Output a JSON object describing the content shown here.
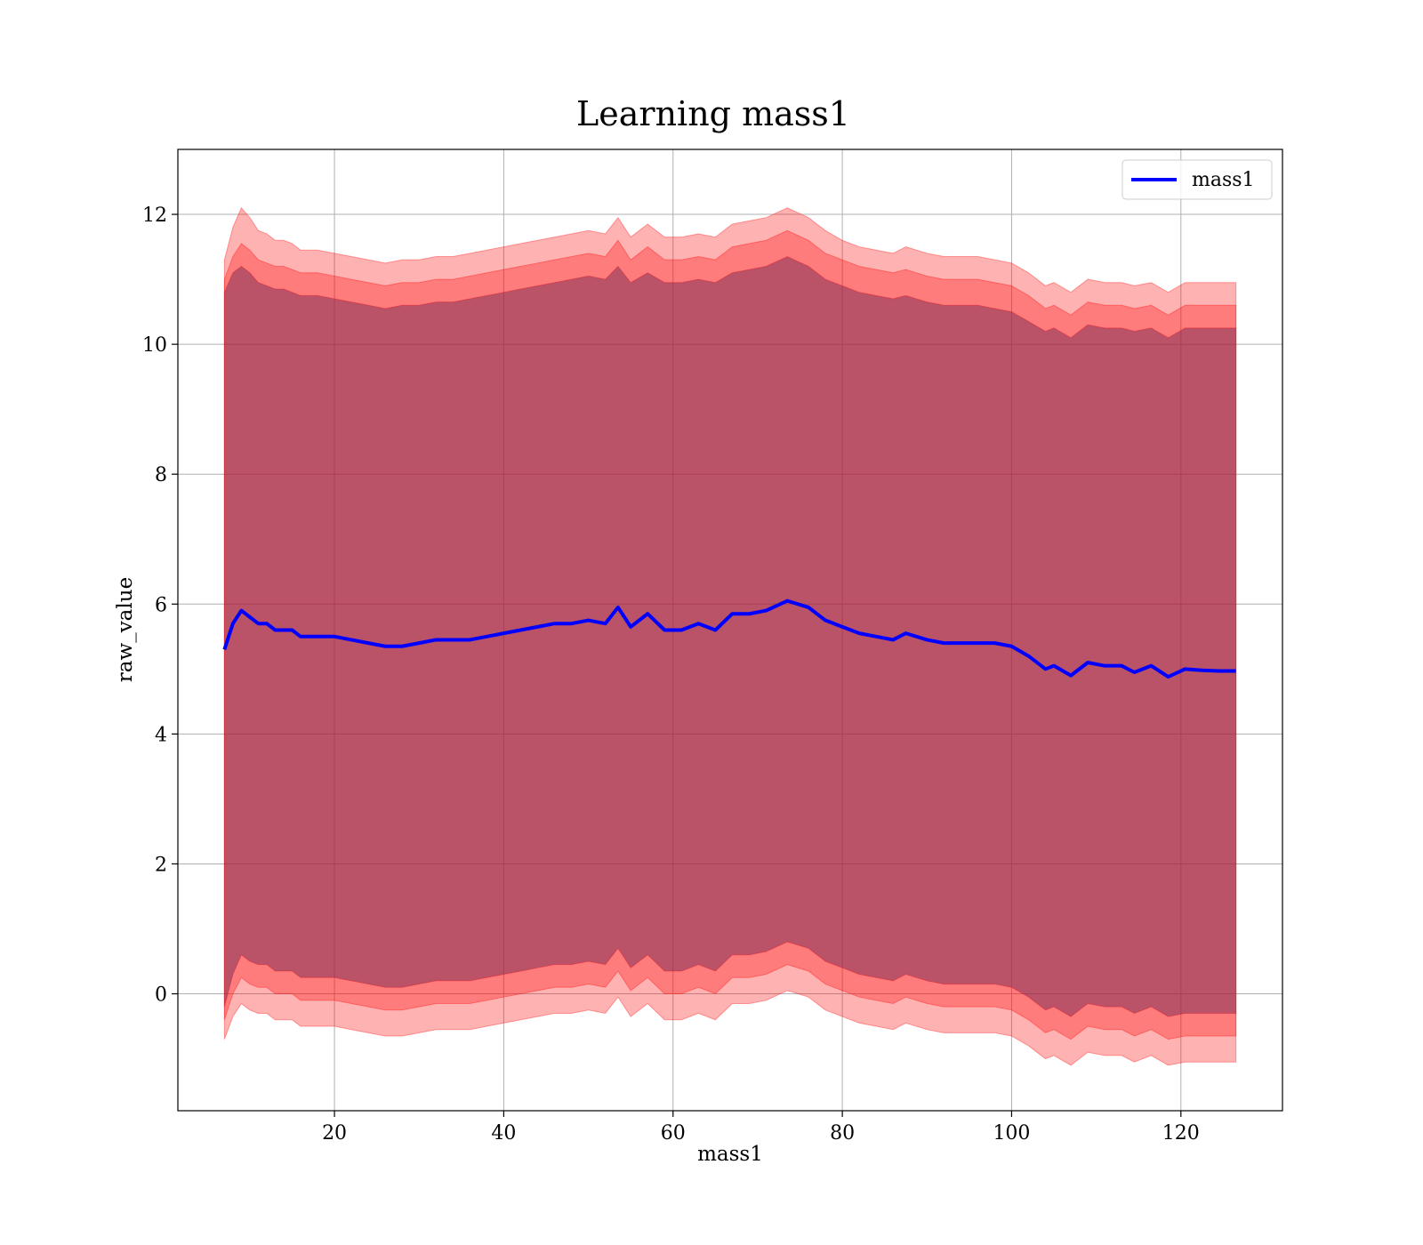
{
  "chart_data": {
    "type": "area",
    "title": "Learning mass1",
    "xlabel": "mass1",
    "ylabel": "raw_value",
    "xlim": [
      1.5,
      132
    ],
    "ylim": [
      -1.8,
      13.0
    ],
    "xticks": [
      20,
      40,
      60,
      80,
      100,
      120
    ],
    "yticks": [
      0,
      2,
      4,
      6,
      8,
      10,
      12
    ],
    "grid": true,
    "legend_position": "top-right",
    "colors": {
      "mean_line": "#0000ff",
      "band": "#ff0000",
      "background": "#ffffff"
    },
    "x": [
      7,
      8,
      9,
      10,
      11,
      12,
      13,
      14,
      15,
      16,
      18,
      20,
      22,
      24,
      26,
      28,
      30,
      32,
      34,
      36,
      38,
      40,
      42,
      44,
      46,
      48,
      50,
      52,
      53.5,
      55,
      57,
      59,
      61,
      63,
      65,
      67,
      69,
      71,
      73.5,
      76,
      78,
      80,
      82,
      84,
      86,
      87.5,
      90,
      92,
      94,
      96,
      98,
      100,
      102,
      104,
      105,
      107,
      109,
      111,
      113,
      114.5,
      116.5,
      118.5,
      120.5,
      122.5,
      124.5,
      126.5
    ],
    "series": [
      {
        "name": "mass1",
        "values": [
          5.3,
          5.7,
          5.9,
          5.8,
          5.7,
          5.7,
          5.6,
          5.6,
          5.6,
          5.5,
          5.5,
          5.5,
          5.45,
          5.4,
          5.35,
          5.35,
          5.4,
          5.45,
          5.45,
          5.45,
          5.5,
          5.55,
          5.6,
          5.65,
          5.7,
          5.7,
          5.75,
          5.7,
          5.95,
          5.65,
          5.85,
          5.6,
          5.6,
          5.7,
          5.6,
          5.85,
          5.85,
          5.9,
          6.05,
          5.95,
          5.75,
          5.65,
          5.55,
          5.5,
          5.45,
          5.55,
          5.45,
          5.4,
          5.4,
          5.4,
          5.4,
          5.35,
          5.2,
          5.0,
          5.05,
          4.9,
          5.1,
          5.05,
          5.05,
          4.95,
          5.05,
          4.88,
          5.0,
          4.98,
          4.97,
          4.97
        ]
      }
    ],
    "bands": [
      {
        "upper": [
          10.8,
          11.1,
          11.2,
          11.1,
          10.95,
          10.9,
          10.85,
          10.85,
          10.8,
          10.75,
          10.75,
          10.7,
          10.65,
          10.6,
          10.55,
          10.6,
          10.6,
          10.65,
          10.65,
          10.7,
          10.75,
          10.8,
          10.85,
          10.9,
          10.95,
          11.0,
          11.05,
          11.0,
          11.2,
          10.95,
          11.1,
          10.95,
          10.95,
          11.0,
          10.95,
          11.1,
          11.15,
          11.2,
          11.35,
          11.2,
          11.0,
          10.9,
          10.8,
          10.75,
          10.7,
          10.75,
          10.65,
          10.6,
          10.6,
          10.6,
          10.55,
          10.5,
          10.35,
          10.2,
          10.25,
          10.1,
          10.3,
          10.25,
          10.25,
          10.2,
          10.25,
          10.1,
          10.25,
          10.25,
          10.25,
          10.25
        ],
        "lower": [
          -0.2,
          0.3,
          0.6,
          0.5,
          0.45,
          0.45,
          0.35,
          0.35,
          0.35,
          0.25,
          0.25,
          0.25,
          0.2,
          0.15,
          0.1,
          0.1,
          0.15,
          0.2,
          0.2,
          0.2,
          0.25,
          0.3,
          0.35,
          0.4,
          0.45,
          0.45,
          0.5,
          0.45,
          0.7,
          0.4,
          0.6,
          0.35,
          0.35,
          0.45,
          0.35,
          0.6,
          0.6,
          0.65,
          0.8,
          0.7,
          0.5,
          0.4,
          0.3,
          0.25,
          0.2,
          0.3,
          0.2,
          0.15,
          0.15,
          0.15,
          0.15,
          0.1,
          -0.05,
          -0.25,
          -0.2,
          -0.35,
          -0.15,
          -0.2,
          -0.2,
          -0.3,
          -0.2,
          -0.35,
          -0.3,
          -0.3,
          -0.3,
          -0.3
        ]
      },
      {
        "upper": [
          11.0,
          11.35,
          11.55,
          11.45,
          11.3,
          11.25,
          11.2,
          11.2,
          11.15,
          11.1,
          11.1,
          11.05,
          11.0,
          10.95,
          10.9,
          10.95,
          10.95,
          11.0,
          11.0,
          11.05,
          11.1,
          11.15,
          11.2,
          11.25,
          11.3,
          11.35,
          11.4,
          11.35,
          11.6,
          11.3,
          11.5,
          11.3,
          11.3,
          11.35,
          11.3,
          11.5,
          11.55,
          11.6,
          11.75,
          11.6,
          11.4,
          11.3,
          11.2,
          11.15,
          11.1,
          11.15,
          11.05,
          11.0,
          11.0,
          11.0,
          10.95,
          10.9,
          10.75,
          10.55,
          10.6,
          10.45,
          10.65,
          10.6,
          10.6,
          10.55,
          10.6,
          10.45,
          10.6,
          10.6,
          10.6,
          10.6
        ],
        "lower": [
          -0.4,
          0.0,
          0.25,
          0.15,
          0.1,
          0.1,
          0.0,
          0.0,
          0.0,
          -0.1,
          -0.1,
          -0.1,
          -0.15,
          -0.2,
          -0.25,
          -0.25,
          -0.2,
          -0.15,
          -0.15,
          -0.15,
          -0.1,
          -0.05,
          0.0,
          0.05,
          0.1,
          0.1,
          0.15,
          0.1,
          0.35,
          0.05,
          0.25,
          0.0,
          0.0,
          0.1,
          0.0,
          0.25,
          0.25,
          0.3,
          0.45,
          0.35,
          0.15,
          0.05,
          -0.05,
          -0.1,
          -0.15,
          -0.05,
          -0.15,
          -0.2,
          -0.2,
          -0.2,
          -0.2,
          -0.25,
          -0.4,
          -0.6,
          -0.55,
          -0.7,
          -0.5,
          -0.55,
          -0.55,
          -0.65,
          -0.55,
          -0.7,
          -0.65,
          -0.65,
          -0.65,
          -0.65
        ]
      },
      {
        "upper": [
          11.3,
          11.8,
          12.1,
          11.95,
          11.75,
          11.7,
          11.6,
          11.6,
          11.55,
          11.45,
          11.45,
          11.4,
          11.35,
          11.3,
          11.25,
          11.3,
          11.3,
          11.35,
          11.35,
          11.4,
          11.45,
          11.5,
          11.55,
          11.6,
          11.65,
          11.7,
          11.75,
          11.7,
          11.95,
          11.65,
          11.85,
          11.65,
          11.65,
          11.7,
          11.65,
          11.85,
          11.9,
          11.95,
          12.1,
          11.95,
          11.75,
          11.6,
          11.5,
          11.45,
          11.4,
          11.5,
          11.4,
          11.35,
          11.35,
          11.35,
          11.3,
          11.25,
          11.1,
          10.9,
          10.95,
          10.8,
          11.0,
          10.95,
          10.95,
          10.9,
          10.95,
          10.8,
          10.95,
          10.95,
          10.95,
          10.95
        ],
        "lower": [
          -0.7,
          -0.35,
          -0.15,
          -0.25,
          -0.3,
          -0.3,
          -0.4,
          -0.4,
          -0.4,
          -0.5,
          -0.5,
          -0.5,
          -0.55,
          -0.6,
          -0.65,
          -0.65,
          -0.6,
          -0.55,
          -0.55,
          -0.55,
          -0.5,
          -0.45,
          -0.4,
          -0.35,
          -0.3,
          -0.3,
          -0.25,
          -0.3,
          -0.05,
          -0.35,
          -0.15,
          -0.4,
          -0.4,
          -0.3,
          -0.4,
          -0.15,
          -0.15,
          -0.1,
          0.05,
          -0.05,
          -0.25,
          -0.35,
          -0.45,
          -0.5,
          -0.55,
          -0.45,
          -0.55,
          -0.6,
          -0.6,
          -0.6,
          -0.6,
          -0.65,
          -0.8,
          -1.0,
          -0.95,
          -1.1,
          -0.9,
          -0.95,
          -0.95,
          -1.05,
          -0.95,
          -1.1,
          -1.05,
          -1.05,
          -1.05,
          -1.05
        ]
      }
    ]
  }
}
